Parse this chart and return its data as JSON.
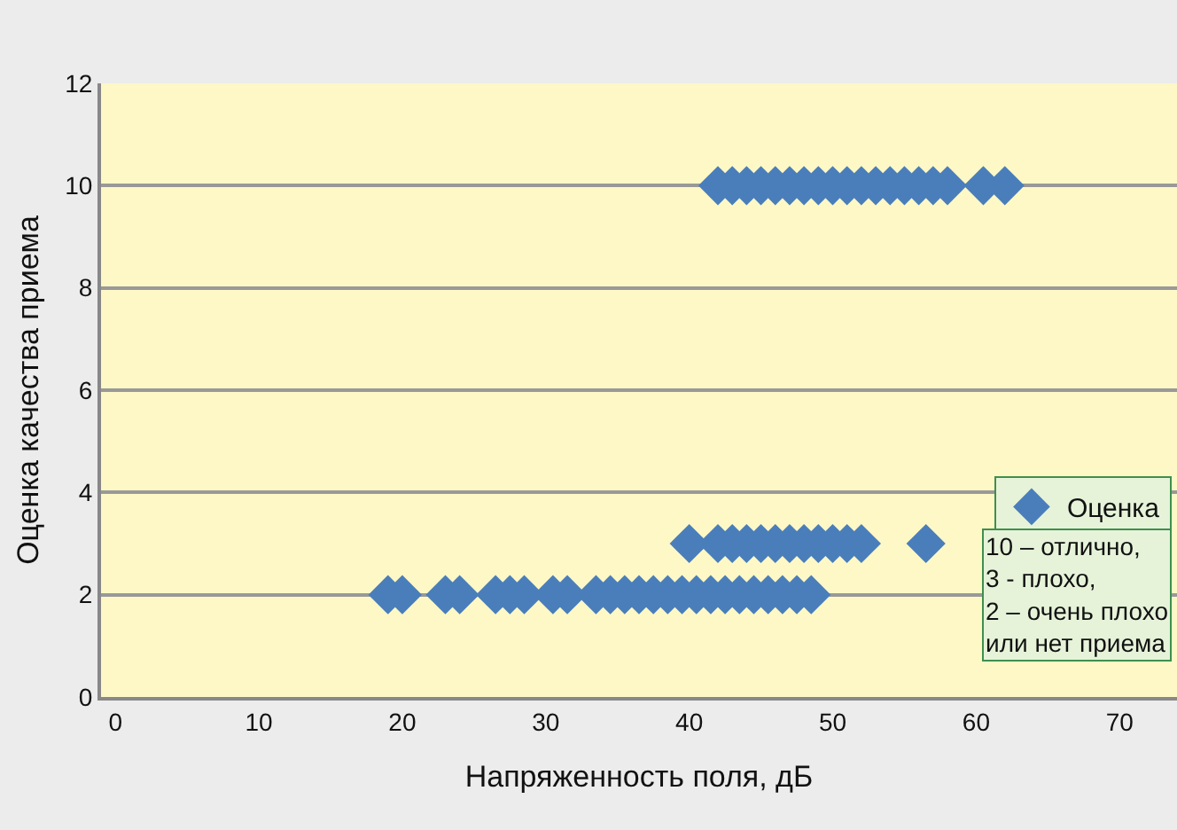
{
  "chart_data": {
    "type": "scatter",
    "xlabel": "Напряженность поля, дБ",
    "ylabel": "Оценка качества приема",
    "series": [
      {
        "name": "Оценка",
        "color": "#4a7ebb",
        "x": [
          42,
          43,
          44,
          45,
          46,
          47,
          48,
          49,
          50,
          51,
          52,
          53,
          54,
          55,
          56,
          57,
          58,
          60.5,
          62,
          40,
          42,
          43,
          44,
          45,
          46,
          47,
          48,
          49,
          50,
          51,
          52,
          56.5,
          19,
          20,
          23,
          24,
          26.5,
          27.5,
          28.5,
          30.5,
          31.5,
          33.5,
          34.5,
          35.5,
          36.5,
          37.5,
          38.5,
          39.5,
          40.5,
          41.5,
          42.5,
          43.5,
          44.5,
          45.5,
          46.5,
          47.5,
          48.5
        ],
        "values": [
          10,
          10,
          10,
          10,
          10,
          10,
          10,
          10,
          10,
          10,
          10,
          10,
          10,
          10,
          10,
          10,
          10,
          10,
          10,
          3,
          3,
          3,
          3,
          3,
          3,
          3,
          3,
          3,
          3,
          3,
          3,
          3,
          2,
          2,
          2,
          2,
          2,
          2,
          2,
          2,
          2,
          2,
          2,
          2,
          2,
          2,
          2,
          2,
          2,
          2,
          2,
          2,
          2,
          2,
          2,
          2,
          2
        ]
      }
    ],
    "marker": "diamond",
    "xlim": [
      -1,
      74
    ],
    "ylim": [
      0,
      12
    ],
    "xticks": [
      0,
      10,
      20,
      30,
      40,
      50,
      60,
      70
    ],
    "yticks": [
      0,
      2,
      4,
      6,
      8,
      10,
      12
    ],
    "grid": "y",
    "legend": "bottom right",
    "annotations": [
      "10 – отлично,\n3 - плохо,\n2 – очень плохо\nили нет приема"
    ]
  }
}
